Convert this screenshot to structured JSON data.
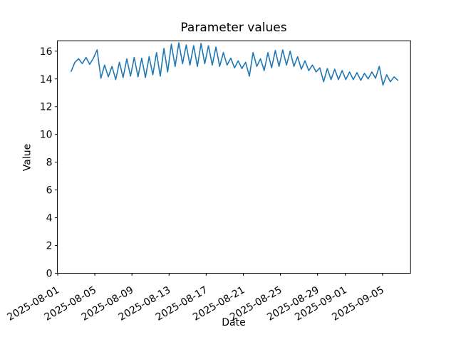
{
  "colors": {
    "background": "#ffffff",
    "text": "#000000",
    "axes": "#000000",
    "line": "#1f77b4"
  },
  "chart_data": {
    "type": "line",
    "title": "Parameter values",
    "xlabel": "Date",
    "ylabel": "Value",
    "grid": false,
    "legend": "none",
    "x_axis": {
      "unit": "days since 2025-08-01",
      "lim": [
        -0.03,
        38.02
      ],
      "tick_rotation_deg": 30,
      "ticks": [
        {
          "day": 0,
          "label": "2025-08-01"
        },
        {
          "day": 4,
          "label": "2025-08-05"
        },
        {
          "day": 8,
          "label": "2025-08-09"
        },
        {
          "day": 12,
          "label": "2025-08-13"
        },
        {
          "day": 16,
          "label": "2025-08-17"
        },
        {
          "day": 20,
          "label": "2025-08-21"
        },
        {
          "day": 24,
          "label": "2025-08-25"
        },
        {
          "day": 28,
          "label": "2025-08-29"
        },
        {
          "day": 31,
          "label": "2025-09-01"
        },
        {
          "day": 35,
          "label": "2025-09-05"
        }
      ]
    },
    "y_axis": {
      "lim": [
        0,
        16.75
      ],
      "ticks": [
        0,
        2,
        4,
        6,
        8,
        10,
        12,
        14,
        16
      ]
    },
    "series": [
      {
        "name": "parameter",
        "color": "#1f77b4",
        "line_width": 1.6,
        "x_days": [
          1.45,
          1.85,
          2.25,
          2.65,
          3.05,
          3.45,
          3.85,
          4.25,
          4.65,
          5.05,
          5.45,
          5.85,
          6.25,
          6.65,
          7.05,
          7.45,
          7.85,
          8.25,
          8.65,
          9.05,
          9.45,
          9.85,
          10.25,
          10.65,
          11.05,
          11.45,
          11.85,
          12.25,
          12.65,
          13.05,
          13.45,
          13.85,
          14.25,
          14.65,
          15.05,
          15.45,
          15.85,
          16.25,
          16.65,
          17.05,
          17.45,
          17.85,
          18.25,
          18.65,
          19.05,
          19.45,
          19.85,
          20.25,
          20.65,
          21.05,
          21.45,
          21.85,
          22.25,
          22.65,
          23.05,
          23.45,
          23.85,
          24.25,
          24.65,
          25.05,
          25.45,
          25.85,
          26.25,
          26.65,
          27.05,
          27.45,
          27.85,
          28.25,
          28.65,
          29.05,
          29.45,
          29.85,
          30.25,
          30.65,
          31.05,
          31.45,
          31.85,
          32.25,
          32.65,
          33.05,
          33.45,
          33.85,
          34.25,
          34.65,
          35.05,
          35.45,
          35.85,
          36.25,
          36.65
        ],
        "values": [
          14.55,
          15.2,
          15.45,
          15.1,
          15.55,
          15.05,
          15.5,
          16.1,
          14.05,
          15.0,
          14.15,
          14.9,
          13.95,
          15.2,
          14.1,
          15.45,
          14.2,
          15.55,
          14.15,
          15.5,
          14.1,
          15.6,
          14.3,
          15.9,
          14.2,
          16.2,
          14.5,
          16.5,
          14.9,
          16.6,
          15.1,
          16.45,
          15.0,
          16.4,
          14.9,
          16.55,
          15.1,
          16.4,
          15.0,
          16.3,
          14.9,
          15.9,
          15.0,
          15.5,
          14.8,
          15.3,
          14.75,
          15.2,
          14.2,
          15.9,
          14.9,
          15.45,
          14.6,
          15.9,
          14.8,
          16.05,
          14.9,
          16.1,
          15.0,
          16.0,
          14.9,
          15.6,
          14.7,
          15.3,
          14.6,
          15.0,
          14.5,
          14.8,
          13.8,
          14.75,
          13.95,
          14.7,
          13.95,
          14.6,
          13.95,
          14.5,
          13.95,
          14.45,
          13.9,
          14.4,
          14.0,
          14.5,
          14.05,
          14.9,
          13.55,
          14.3,
          13.8,
          14.15,
          13.9
        ]
      }
    ]
  }
}
